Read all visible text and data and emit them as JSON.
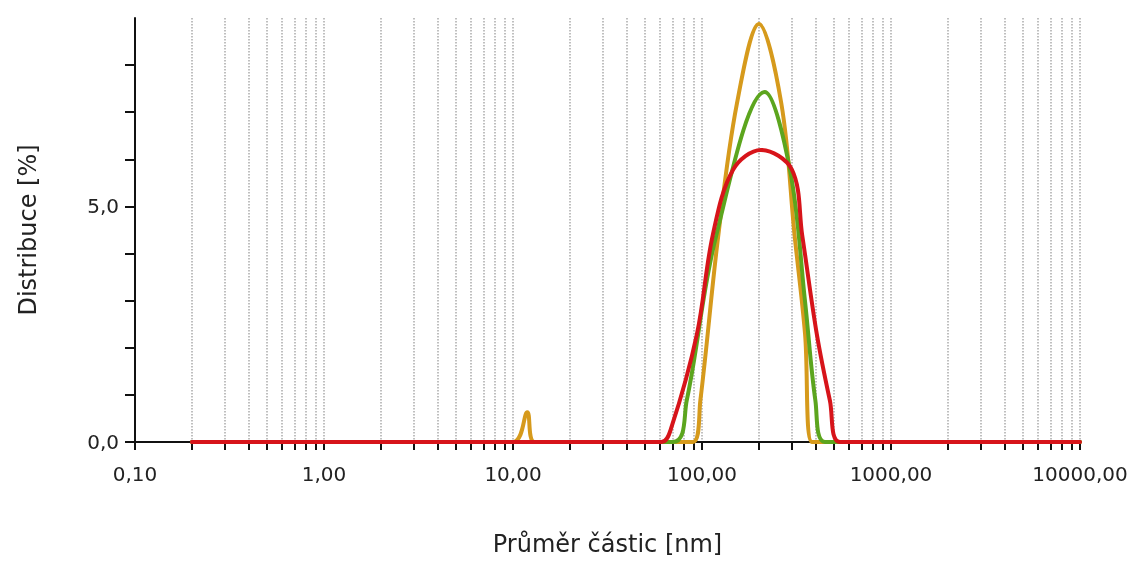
{
  "chart_data": {
    "type": "line",
    "xlabel": "Průměr částic [nm]",
    "ylabel": "Distribuce [%]",
    "log": "x",
    "grid": "x",
    "marker": "none",
    "line_style": "solid",
    "xlim": [
      0.1,
      10000
    ],
    "ylim": [
      0,
      9
    ],
    "xticks": [
      {
        "value": 0.1,
        "label": "0,10"
      },
      {
        "value": 0.2,
        "label": null
      },
      {
        "value": 0.3,
        "label": null
      },
      {
        "value": 0.4,
        "label": null
      },
      {
        "value": 0.5,
        "label": null
      },
      {
        "value": 0.6,
        "label": null
      },
      {
        "value": 0.7,
        "label": null
      },
      {
        "value": 0.8,
        "label": null
      },
      {
        "value": 0.9,
        "label": null
      },
      {
        "value": 1,
        "label": "1,00"
      },
      {
        "value": 2,
        "label": null
      },
      {
        "value": 3,
        "label": null
      },
      {
        "value": 4,
        "label": null
      },
      {
        "value": 5,
        "label": null
      },
      {
        "value": 6,
        "label": null
      },
      {
        "value": 7,
        "label": null
      },
      {
        "value": 8,
        "label": null
      },
      {
        "value": 9,
        "label": null
      },
      {
        "value": 10,
        "label": "10,00"
      },
      {
        "value": 20,
        "label": null
      },
      {
        "value": 30,
        "label": null
      },
      {
        "value": 40,
        "label": null
      },
      {
        "value": 50,
        "label": null
      },
      {
        "value": 60,
        "label": null
      },
      {
        "value": 70,
        "label": null
      },
      {
        "value": 80,
        "label": null
      },
      {
        "value": 90,
        "label": null
      },
      {
        "value": 100,
        "label": "100,00"
      },
      {
        "value": 200,
        "label": null
      },
      {
        "value": 300,
        "label": null
      },
      {
        "value": 400,
        "label": null
      },
      {
        "value": 500,
        "label": null
      },
      {
        "value": 600,
        "label": null
      },
      {
        "value": 700,
        "label": null
      },
      {
        "value": 800,
        "label": null
      },
      {
        "value": 900,
        "label": null
      },
      {
        "value": 1000,
        "label": "1000,00"
      },
      {
        "value": 2000,
        "label": null
      },
      {
        "value": 3000,
        "label": null
      },
      {
        "value": 4000,
        "label": null
      },
      {
        "value": 5000,
        "label": null
      },
      {
        "value": 6000,
        "label": null
      },
      {
        "value": 7000,
        "label": null
      },
      {
        "value": 8000,
        "label": null
      },
      {
        "value": 9000,
        "label": null
      },
      {
        "value": 10000,
        "label": "10000,00"
      }
    ],
    "yticks": [
      {
        "value": 0,
        "label": "0,0"
      },
      {
        "value": 1,
        "label": null
      },
      {
        "value": 2,
        "label": null
      },
      {
        "value": 3,
        "label": null
      },
      {
        "value": 4,
        "label": null
      },
      {
        "value": 5,
        "label": "5,0"
      },
      {
        "value": 6,
        "label": null
      },
      {
        "value": 7,
        "label": null
      },
      {
        "value": 8,
        "label": null
      }
    ],
    "series": [
      {
        "color": "#d69a1c",
        "x": [
          0.2,
          10,
          11.9,
          13,
          89.5,
          98,
          122,
          153,
          200,
          263,
          309,
          351,
          382,
          10000
        ],
        "values": [
          0,
          0,
          0.63,
          0,
          0,
          0.88,
          4.39,
          7.18,
          8.87,
          7.18,
          4.39,
          2.29,
          0,
          0
        ]
      },
      {
        "color": "#5ca51e",
        "x": [
          0.2,
          70,
          83,
          119,
          215,
          292,
          351,
          398,
          447,
          10000
        ],
        "values": [
          0,
          0,
          0.88,
          4.39,
          7.43,
          5.78,
          2.98,
          0.88,
          0,
          0
        ]
      },
      {
        "color": "#d7141a",
        "x": [
          0.2,
          61,
          69,
          94,
          114,
          146,
          205,
          299,
          339,
          405,
          475,
          537,
          10000
        ],
        "values": [
          0,
          0,
          0.32,
          2.29,
          4.39,
          5.78,
          6.2,
          5.78,
          4.39,
          2.29,
          0.88,
          0,
          0
        ]
      }
    ]
  }
}
